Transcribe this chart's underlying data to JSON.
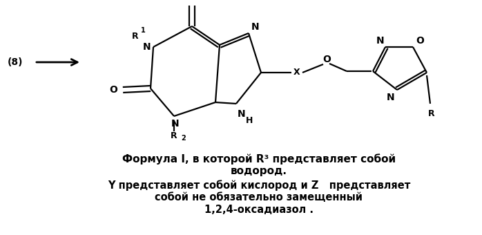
{
  "background_color": "#ffffff",
  "label_8": "(8)",
  "text_lines": [
    "Формула I, в которой R³ представляет собой",
    "водород.",
    "Y представляет собой кислород и Z   представляет",
    "собой не обязательно замещенный",
    "1,2,4-оксадиазол ."
  ],
  "fig_width": 6.98,
  "fig_height": 3.4,
  "dpi": 100
}
